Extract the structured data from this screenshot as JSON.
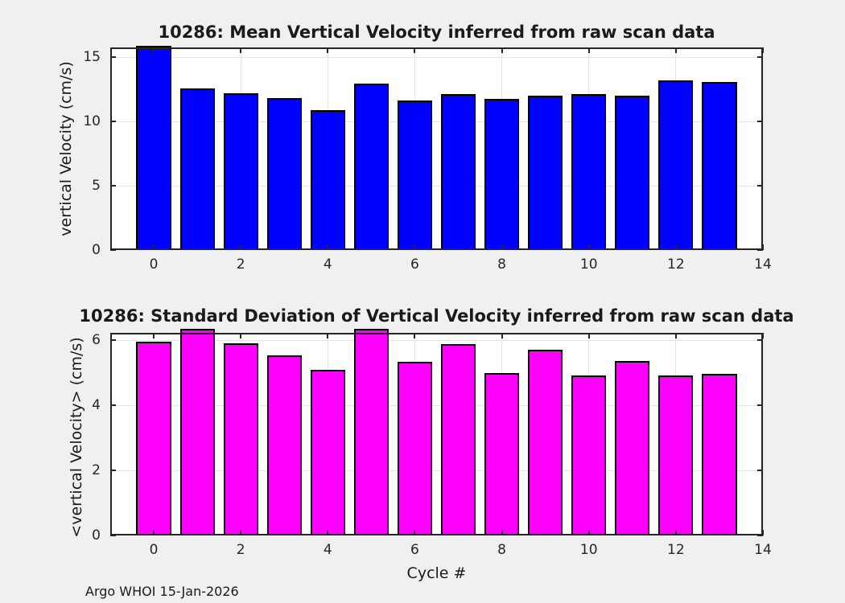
{
  "figure": {
    "background_color": "#f0f0f0",
    "footer_text": "Argo WHOI 15-Jan-2026",
    "axis_color": "#262626",
    "grid_color": "#e3e3e3",
    "plot_background": "#ffffff"
  },
  "chart_data": [
    {
      "type": "bar",
      "title": "10286: Mean Vertical Velocity inferred from raw scan data",
      "xlabel": "",
      "ylabel": "vertical Velocity (cm/s)",
      "categories": [
        0,
        1,
        2,
        3,
        4,
        5,
        6,
        7,
        8,
        9,
        10,
        11,
        12,
        13
      ],
      "values": [
        15.85,
        12.57,
        12.2,
        11.8,
        10.85,
        12.95,
        11.65,
        12.15,
        11.78,
        12.03,
        12.1,
        12.0,
        13.2,
        13.05
      ],
      "bar_color": "#0000ff",
      "bar_edge_color": "#000000",
      "xlim": [
        -1,
        14
      ],
      "ylim": [
        0,
        15.75
      ],
      "xticks": [
        0,
        2,
        4,
        6,
        8,
        10,
        12,
        14
      ],
      "yticks": [
        0,
        5,
        10,
        15
      ],
      "grid": true,
      "legend": null
    },
    {
      "type": "bar",
      "title": "10286: Standard Deviation of Vertical Velocity inferred from raw scan data",
      "xlabel": "Cycle #",
      "ylabel": "<vertical Velocity> (cm/s)",
      "categories": [
        0,
        1,
        2,
        3,
        4,
        5,
        6,
        7,
        8,
        9,
        10,
        11,
        12,
        13
      ],
      "values": [
        5.95,
        6.35,
        5.9,
        5.55,
        5.1,
        6.35,
        5.35,
        5.88,
        5.0,
        5.72,
        4.92,
        5.37,
        4.93,
        4.97
      ],
      "bar_color": "#ff00ff",
      "bar_edge_color": "#000000",
      "xlim": [
        -1,
        14
      ],
      "ylim": [
        0,
        6.23
      ],
      "xticks": [
        0,
        2,
        4,
        6,
        8,
        10,
        12,
        14
      ],
      "yticks": [
        0,
        2,
        4,
        6
      ],
      "grid": true,
      "legend": null
    }
  ]
}
